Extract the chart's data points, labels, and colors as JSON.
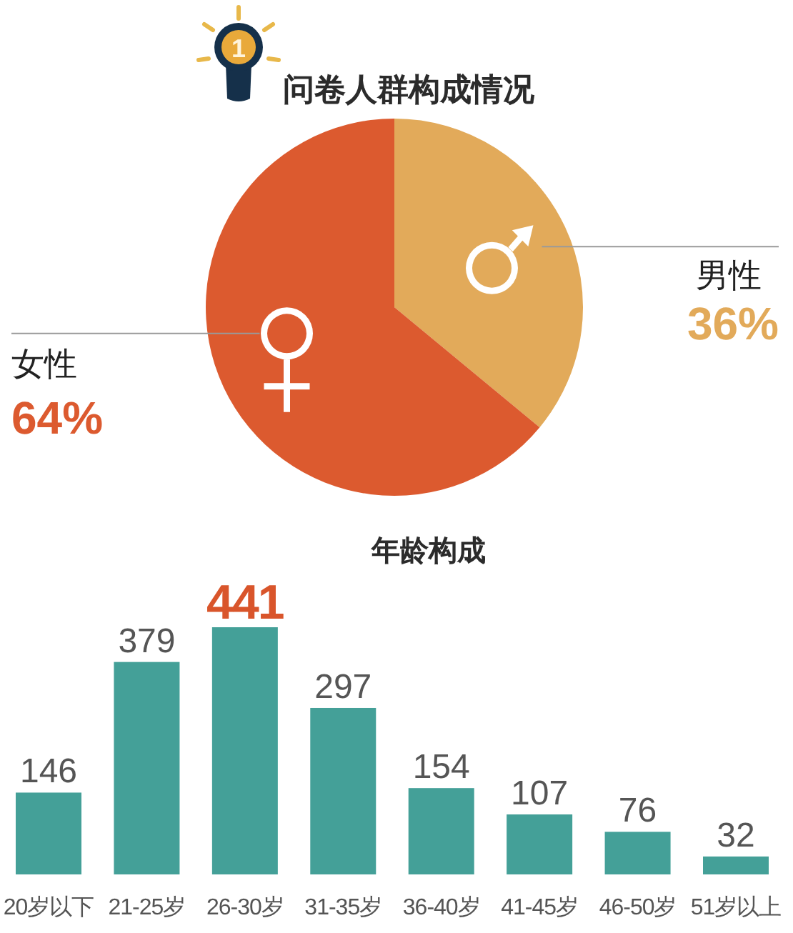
{
  "chart_data": [
    {
      "type": "pie",
      "title": "问卷人群构成情况",
      "categories": [
        "男性",
        "女性"
      ],
      "values": [
        36,
        64
      ],
      "colors": [
        "#e2aa5a",
        "#dc5a2f"
      ],
      "value_labels": [
        "36%",
        "64%"
      ],
      "annotations": [
        "1"
      ]
    },
    {
      "type": "bar",
      "title": "年龄构成",
      "categories": [
        "20岁以下",
        "21-25岁",
        "26-30岁",
        "31-35岁",
        "36-40岁",
        "41-45岁",
        "46-50岁",
        "51岁以上"
      ],
      "values": [
        146,
        379,
        441,
        297,
        154,
        107,
        76,
        32
      ],
      "color": "#44a098",
      "data_labels": true,
      "tick_labels": "x"
    }
  ]
}
